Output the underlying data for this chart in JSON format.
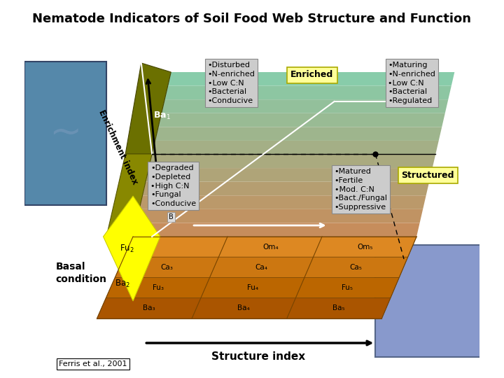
{
  "title": "Nematode Indicators of Soil Food Web Structure and Function",
  "title_fontsize": 13,
  "background_color": "#ffffff",
  "text_top_left": {
    "lines": [
      "•Disturbed",
      "•N-enriched",
      "•Low C:N",
      "•Bacterial",
      "•Conducive"
    ]
  },
  "text_top_right": {
    "lines": [
      "•Maturing",
      "•N-enriched",
      "•Low C:N",
      "•Bacterial",
      "•Regulated"
    ]
  },
  "text_bottom_left": {
    "lines": [
      "•Degraded",
      "•Depleted",
      "•High C:N",
      "•Fungal",
      "•Conducive"
    ]
  },
  "text_bottom_right": {
    "lines": [
      "•Matured",
      "•Fertile",
      "•Mod. C:N",
      "•Bact./Fungal",
      "•Suppressive"
    ]
  },
  "citation": "Ferris et al., 2001",
  "colors": {
    "olive_dark": "#6b6b00",
    "olive_mid": "#888800",
    "olive_light": "#999900",
    "yellow_bright": "#ffff00",
    "yellow_mid": "#eeee22",
    "teal_top": "#88ccaa",
    "teal_grad1": "#99c8a0",
    "brown_grad1": "#c09070",
    "brown_grad2": "#bb8860",
    "orange1": "#dd8822",
    "orange2": "#cc7711",
    "orange3": "#bb6600",
    "orange4": "#aa5500",
    "grid_line": "#885500"
  }
}
